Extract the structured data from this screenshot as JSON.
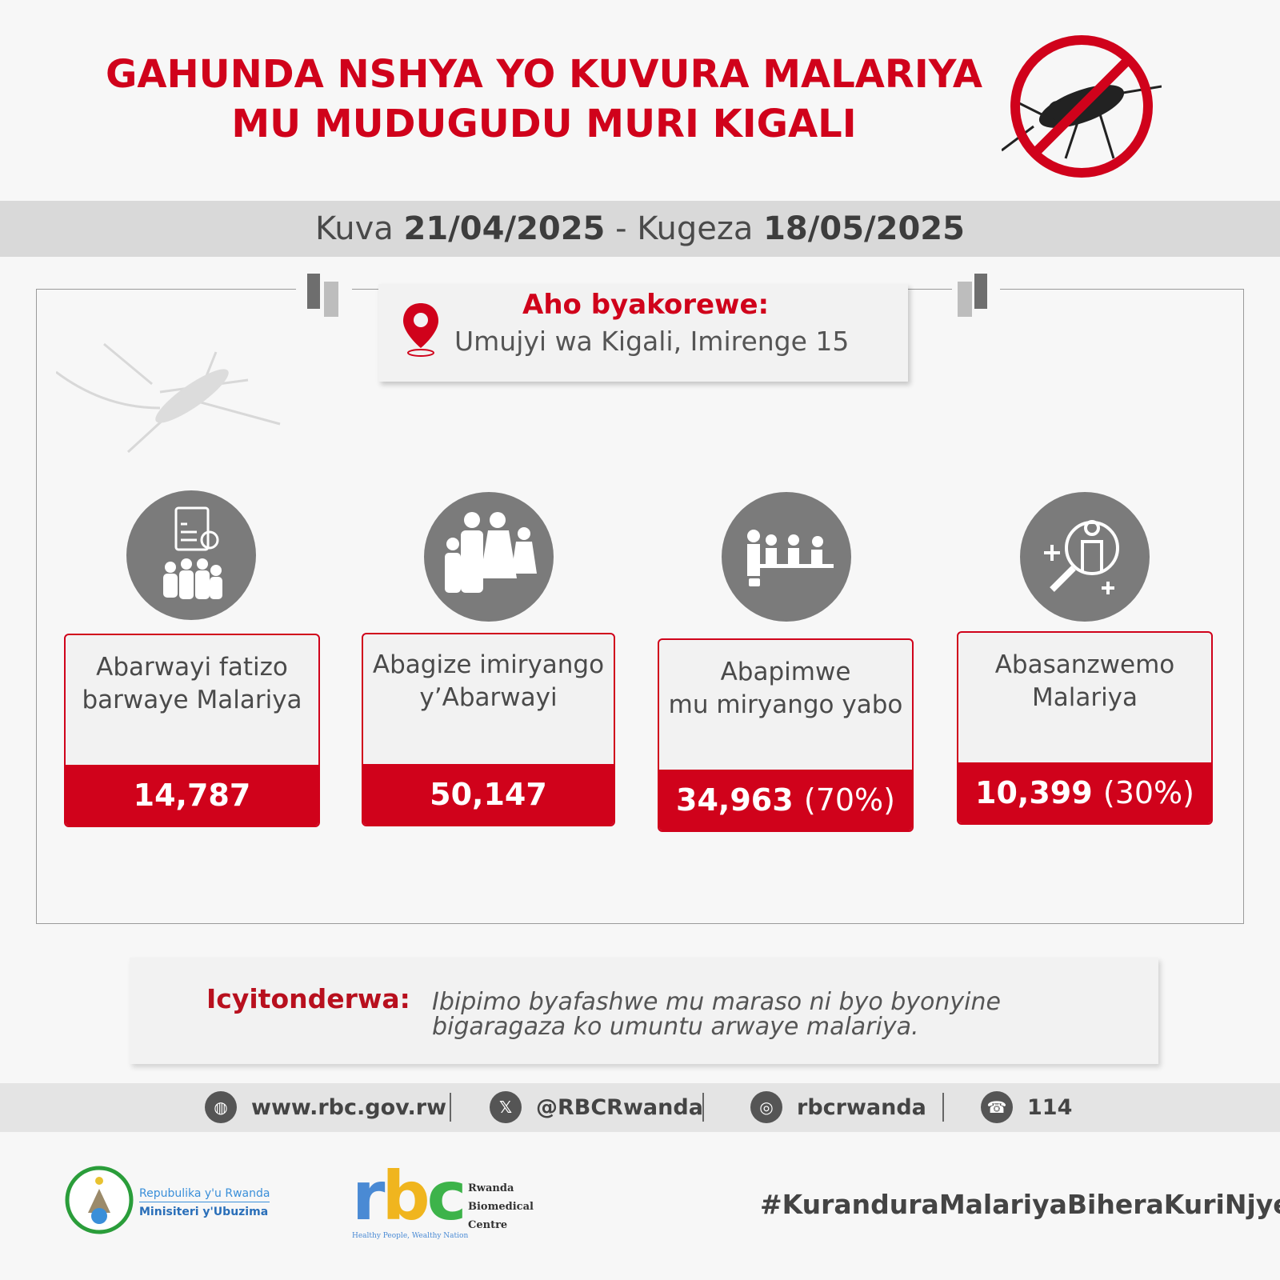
{
  "header": {
    "title_line1": "GAHUNDA NSHYA YO KUVURA MALARIYA",
    "title_line2": "MU MUDUGUDU MURI KIGALI",
    "icon": "no-mosquito-icon"
  },
  "dates": {
    "from_label": "Kuva",
    "from": "21/04/2025",
    "sep": "-",
    "to_label": "Kugeza",
    "to": "18/05/2025"
  },
  "location": {
    "heading": "Aho byakorewe:",
    "value": "Umujyi wa Kigali, Imirenge 15",
    "icon": "map-pin-icon"
  },
  "stats": [
    {
      "line1": "Abarwayi fatizo",
      "line2": "barwaye Malariya",
      "value": "14,787",
      "pct": "",
      "icon": "clipboard-crowd-icon"
    },
    {
      "line1": "Abagize imiryango",
      "line2": "y’Abarwayi",
      "value": "50,147",
      "pct": "",
      "icon": "family-icon"
    },
    {
      "line1": "Abapimwe",
      "line2": "mu miryango yabo",
      "value": "34,963",
      "pct": "(70%)",
      "icon": "testing-icon"
    },
    {
      "line1": "Abasanzwemo",
      "line2": "Malariya",
      "value": "10,399",
      "pct": "(30%)",
      "icon": "magnifier-person-icon"
    }
  ],
  "note": {
    "label": "Icyitonderwa:",
    "text": "Ibipimo byafashwe mu maraso ni byo byonyine bigaragaza ko umuntu arwaye malariya."
  },
  "social": [
    {
      "icon": "globe-icon",
      "text": "www.rbc.gov.rw"
    },
    {
      "icon": "x-icon",
      "text": "@RBCRwanda"
    },
    {
      "icon": "instagram-icon",
      "text": "rbcrwanda"
    },
    {
      "icon": "phone-icon",
      "text": "114"
    }
  ],
  "footer": {
    "gov_line1": "Repubulika y'u Rwanda",
    "gov_line2": "Minisiteri y'Ubuzima",
    "rbc_logo": "rbc",
    "rbc_name1": "Rwanda",
    "rbc_name2": "Biomedical",
    "rbc_name3": "Centre",
    "rbc_tagline": "Healthy People, Wealthy Nation",
    "hashtag": "#KuranduraMalariyaBiheraKuriNjye"
  },
  "colors": {
    "accent": "#d0021b",
    "circle": "#7b7b7b",
    "band": "#d9d9d9"
  }
}
